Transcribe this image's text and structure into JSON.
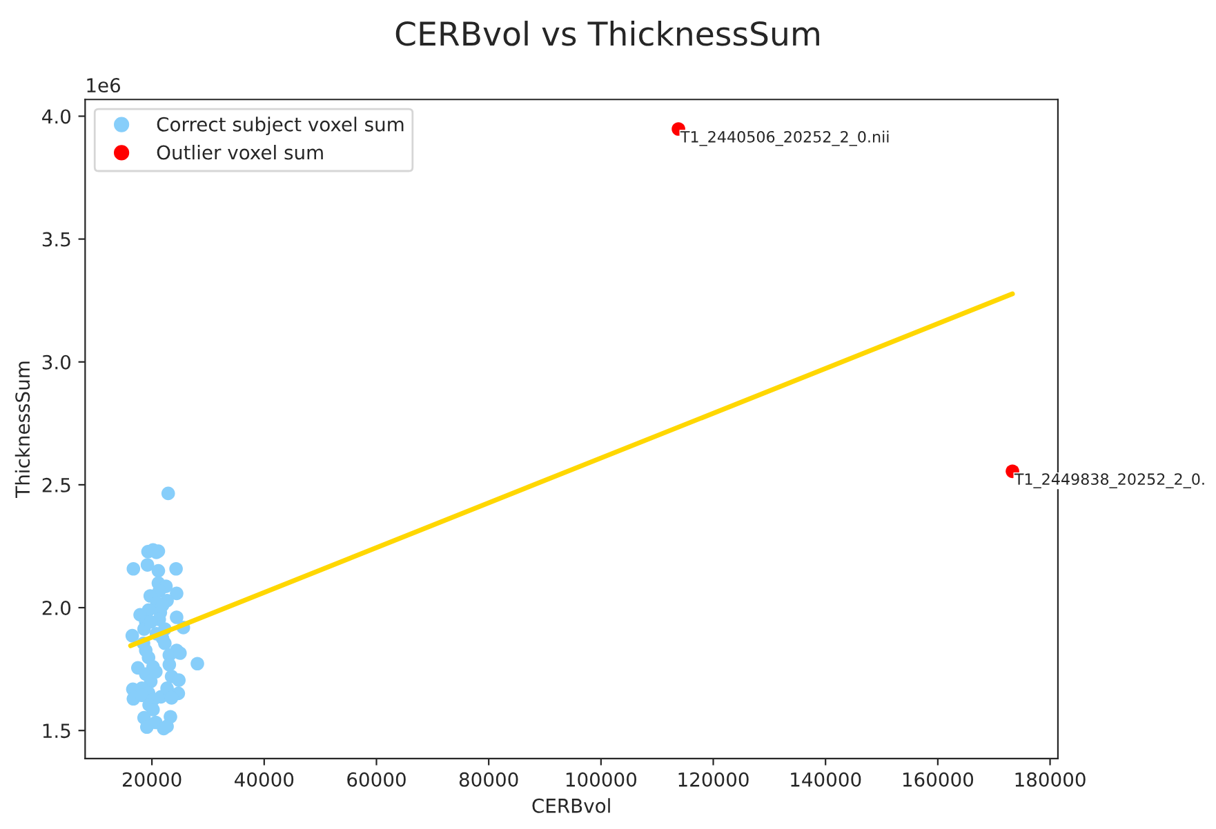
{
  "chart_data": {
    "type": "scatter",
    "title": "CERBvol vs ThicknessSum",
    "xlabel": "CERBvol",
    "ylabel": "ThicknessSum",
    "xlim": [
      8100,
      181400
    ],
    "ylim": [
      1.386,
      4.068
    ],
    "xticks": [
      20000,
      40000,
      60000,
      80000,
      100000,
      120000,
      140000,
      160000,
      180000
    ],
    "yticks": [
      {
        "value": 1.5,
        "label": "1.5"
      },
      {
        "value": 2,
        "label": "2.0"
      },
      {
        "value": 2.5,
        "label": "2.5"
      },
      {
        "value": 3,
        "label": "3.0"
      },
      {
        "value": 3.5,
        "label": "3.5"
      },
      {
        "value": 4,
        "label": "4.0"
      }
    ],
    "legend": "top left",
    "grid": false,
    "marker": "circle",
    "annotations": [
      "1e6",
      {
        "text": "T1_2440506_20252_2_0.nii",
        "x": 113800,
        "y": 3.948
      },
      {
        "text": "T1_2449838_20252_2_0.",
        "x": 173300,
        "y": 2.555
      }
    ],
    "series": [
      {
        "name": "Correct subject voxel sum",
        "color": "#87cefa",
        "x": [
          22900,
          19300,
          20200,
          21150,
          20800,
          16700,
          19200,
          21150,
          24300,
          21150,
          22500,
          21300,
          19700,
          24400,
          22700,
          20900,
          21900,
          19400,
          21500,
          24400,
          17900,
          18900,
          21300,
          25600,
          18600,
          16500,
          20800,
          21900,
          18500,
          22300,
          24400,
          23100,
          19400,
          25000,
          28100,
          17500,
          20200,
          23100,
          18900,
          23500,
          19800,
          24800,
          16600,
          18200,
          19400,
          21600,
          22700,
          16700,
          18200,
          24700,
          20200,
          19500,
          20200,
          18600,
          20700,
          23300,
          19100,
          22100,
          22700,
          20700,
          22300,
          19800,
          18900,
          23500
        ],
        "values": [
          2.465,
          2.228,
          2.235,
          2.23,
          2.225,
          2.158,
          2.174,
          2.15,
          2.158,
          2.1,
          2.087,
          2.068,
          2.048,
          2.058,
          2.029,
          2.019,
          2.01,
          1.99,
          1.98,
          1.961,
          1.971,
          1.942,
          1.952,
          1.919,
          1.913,
          1.886,
          1.894,
          1.875,
          1.855,
          1.855,
          1.826,
          1.807,
          1.797,
          1.815,
          1.772,
          1.755,
          1.759,
          1.768,
          1.73,
          1.72,
          1.7,
          1.705,
          1.668,
          1.672,
          1.653,
          1.637,
          1.672,
          1.629,
          1.643,
          1.651,
          1.625,
          1.604,
          1.585,
          1.552,
          1.533,
          1.556,
          1.514,
          1.508,
          1.517,
          1.739,
          1.913,
          1.942,
          1.826,
          1.633
        ]
      },
      {
        "name": "Outlier voxel sum",
        "color": "#ff0000",
        "x": [
          113800,
          173300
        ],
        "values": [
          3.948,
          2.555
        ]
      },
      {
        "color": "#ffd700",
        "type": "line",
        "line_style": "solid",
        "marker": "none",
        "x": [
          16200,
          173300
        ],
        "values": [
          1.845,
          3.277
        ]
      }
    ]
  }
}
